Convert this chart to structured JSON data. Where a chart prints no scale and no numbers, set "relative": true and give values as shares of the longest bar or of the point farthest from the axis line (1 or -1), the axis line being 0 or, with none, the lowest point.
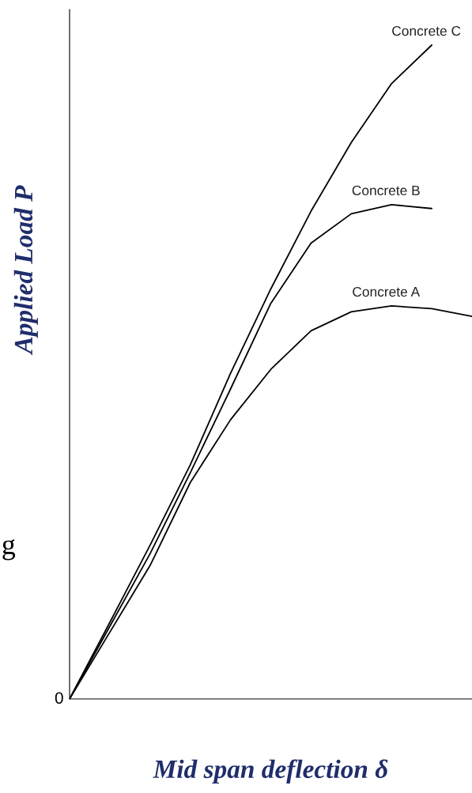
{
  "chart_data": {
    "type": "line",
    "relative": true,
    "xlabel": "Mid span deflection δ",
    "ylabel": "Applied Load P",
    "annotations": [
      "0",
      "g"
    ],
    "legend": false,
    "marker": "none",
    "line_style": "solid",
    "categories": [
      null,
      null,
      null,
      null,
      null,
      null,
      null,
      null,
      null,
      null,
      null
    ],
    "series": [
      {
        "name": "Concrete C",
        "color": "#000000",
        "values": [
          0,
          0.117,
          0.235,
          0.358,
          0.498,
          0.627,
          0.746,
          0.851,
          0.941,
          1.0,
          null
        ]
      },
      {
        "name": "Concrete B",
        "color": "#000000",
        "values": [
          0,
          0.111,
          0.222,
          0.346,
          0.474,
          0.605,
          0.697,
          0.742,
          0.756,
          0.75,
          null
        ]
      },
      {
        "name": "Concrete A",
        "color": "#000000",
        "values": [
          0,
          0.102,
          0.204,
          0.331,
          0.427,
          0.504,
          0.563,
          0.592,
          0.601,
          0.597,
          0.585
        ]
      }
    ]
  }
}
